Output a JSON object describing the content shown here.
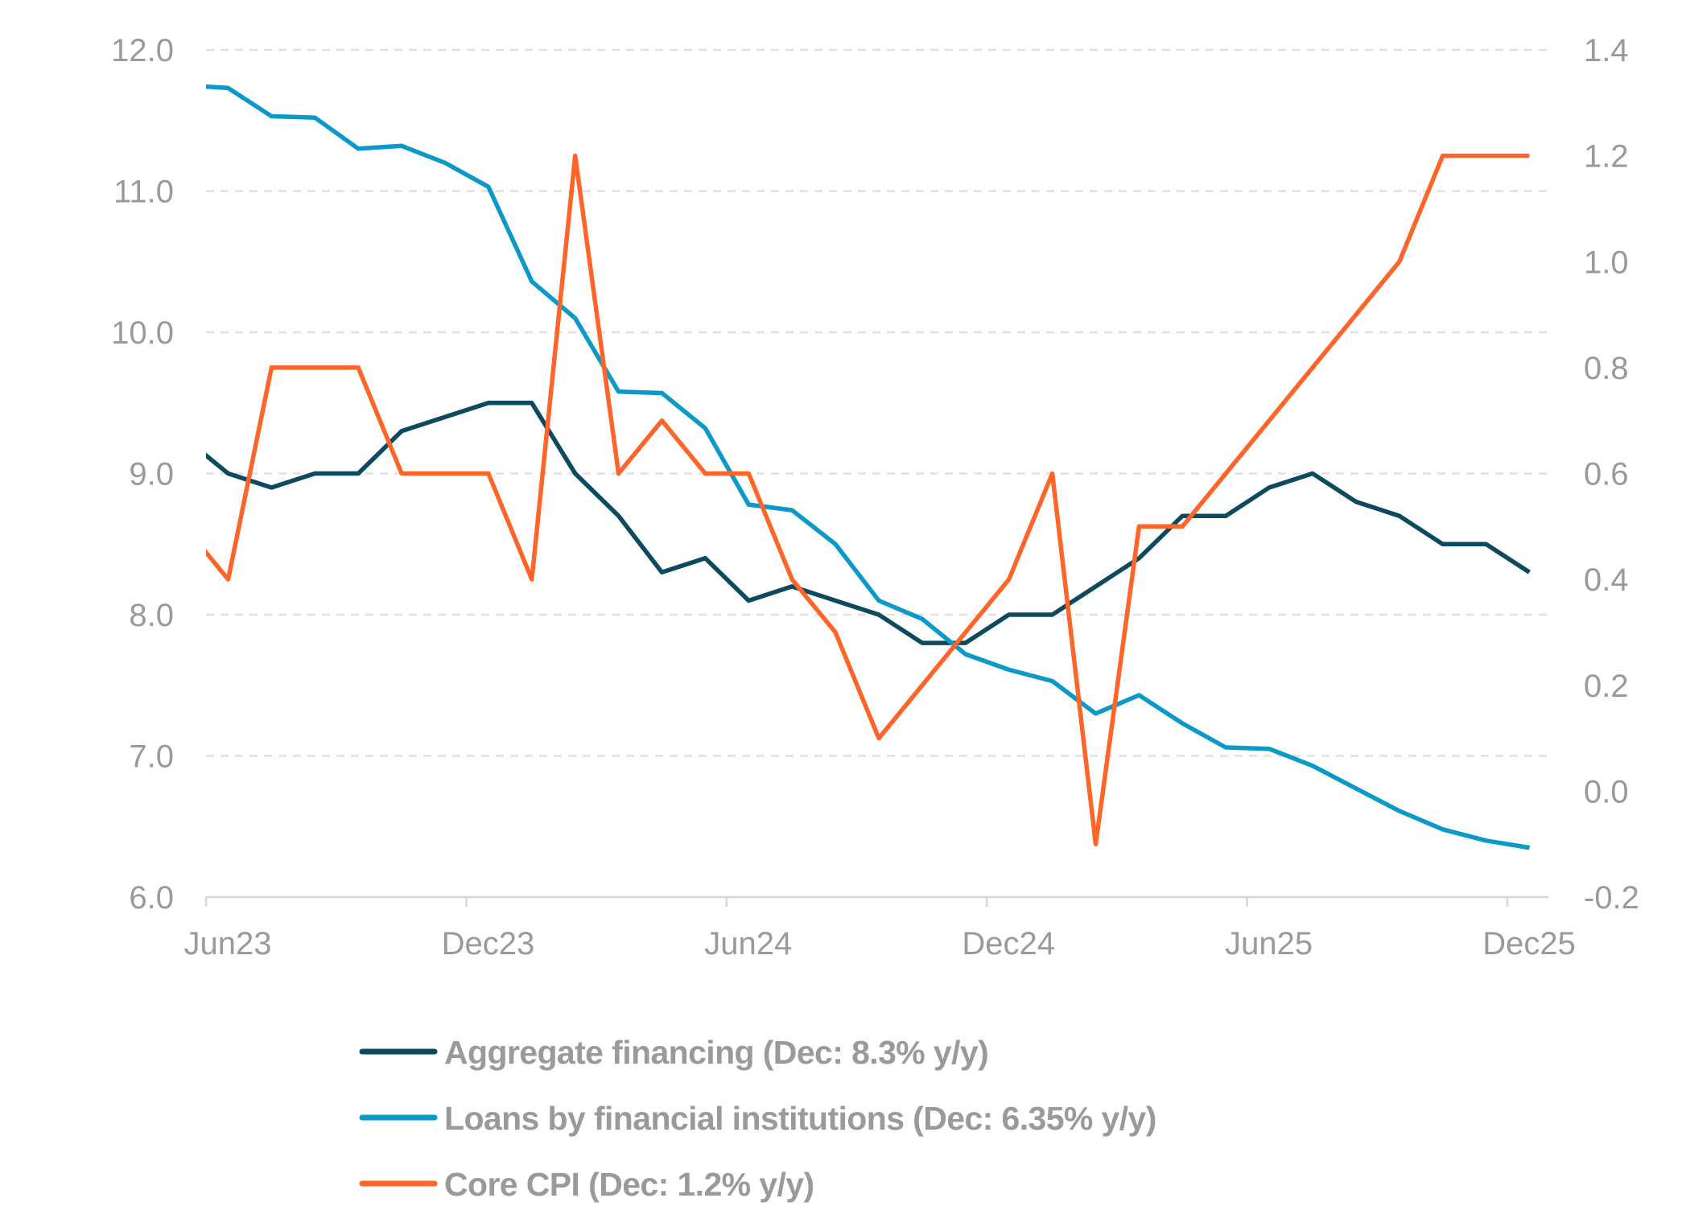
{
  "chart_data": {
    "type": "line",
    "title": "",
    "xlabel": "",
    "ylabel": "",
    "categories": [
      "May23",
      "Jun23",
      "Jul23",
      "Aug23",
      "Sep23",
      "Oct23",
      "Nov23",
      "Dec23",
      "Jan24",
      "Feb24",
      "Mar24",
      "Apr24",
      "May24",
      "Jun24",
      "Jul24",
      "Aug24",
      "Sep24",
      "Oct24",
      "Nov24",
      "Dec24",
      "Jan25",
      "Feb25",
      "Mar25",
      "Apr25",
      "May25",
      "Jun25",
      "Jul25",
      "Aug25",
      "Sep25",
      "Oct25",
      "Nov25",
      "Dec25"
    ],
    "x_tick_labels": [
      "Jun23",
      "Dec23",
      "Jun24",
      "Dec24",
      "Jun25",
      "Dec25"
    ],
    "y_left": {
      "range": [
        6.0,
        12.0
      ],
      "ticks": [
        "6.0",
        "7.0",
        "8.0",
        "9.0",
        "10.0",
        "11.0",
        "12.0"
      ]
    },
    "y_right": {
      "range": [
        -0.2,
        1.4
      ],
      "ticks": [
        "-0.2",
        "0.0",
        "0.2",
        "0.4",
        "0.6",
        "0.8",
        "1.0",
        "1.2",
        "1.4"
      ]
    },
    "grid": true,
    "legend_placement": "bottom",
    "series": [
      {
        "name": "Aggregate financing (Dec: 8.3% y/y)",
        "axis": "left",
        "color": "#0d4a60",
        "values": [
          9.25,
          9.0,
          8.9,
          9.0,
          9.0,
          9.3,
          9.4,
          9.5,
          9.5,
          9.0,
          8.7,
          8.3,
          8.4,
          8.1,
          8.2,
          8.1,
          8.0,
          7.8,
          7.8,
          8.0,
          8.0,
          8.2,
          8.4,
          8.7,
          8.7,
          8.9,
          9.0,
          8.8,
          8.7,
          8.5,
          8.5,
          8.3
        ]
      },
      {
        "name": "Loans by financial institutions (Dec: 6.35% y/y)",
        "axis": "left",
        "color": "#0a99c9",
        "values": [
          11.75,
          11.73,
          11.53,
          11.52,
          11.3,
          11.32,
          11.2,
          11.03,
          10.36,
          10.1,
          9.58,
          9.57,
          9.32,
          8.78,
          8.74,
          8.5,
          8.1,
          7.97,
          7.72,
          7.61,
          7.53,
          7.3,
          7.43,
          7.23,
          7.06,
          7.05,
          6.93,
          6.77,
          6.61,
          6.48,
          6.4,
          6.35
        ]
      },
      {
        "name": "Core CPI (Dec: 1.2% y/y)",
        "axis": "right",
        "color": "#ff6428",
        "values": [
          0.5,
          0.4,
          0.8,
          0.8,
          0.8,
          0.6,
          0.6,
          0.6,
          0.4,
          1.2,
          0.6,
          0.7,
          0.6,
          0.6,
          0.4,
          0.3,
          0.1,
          0.2,
          0.3,
          0.4,
          0.6,
          -0.1,
          0.5,
          0.5,
          0.6,
          0.7,
          0.8,
          0.9,
          1.0,
          1.2,
          1.2,
          1.2
        ]
      }
    ]
  }
}
